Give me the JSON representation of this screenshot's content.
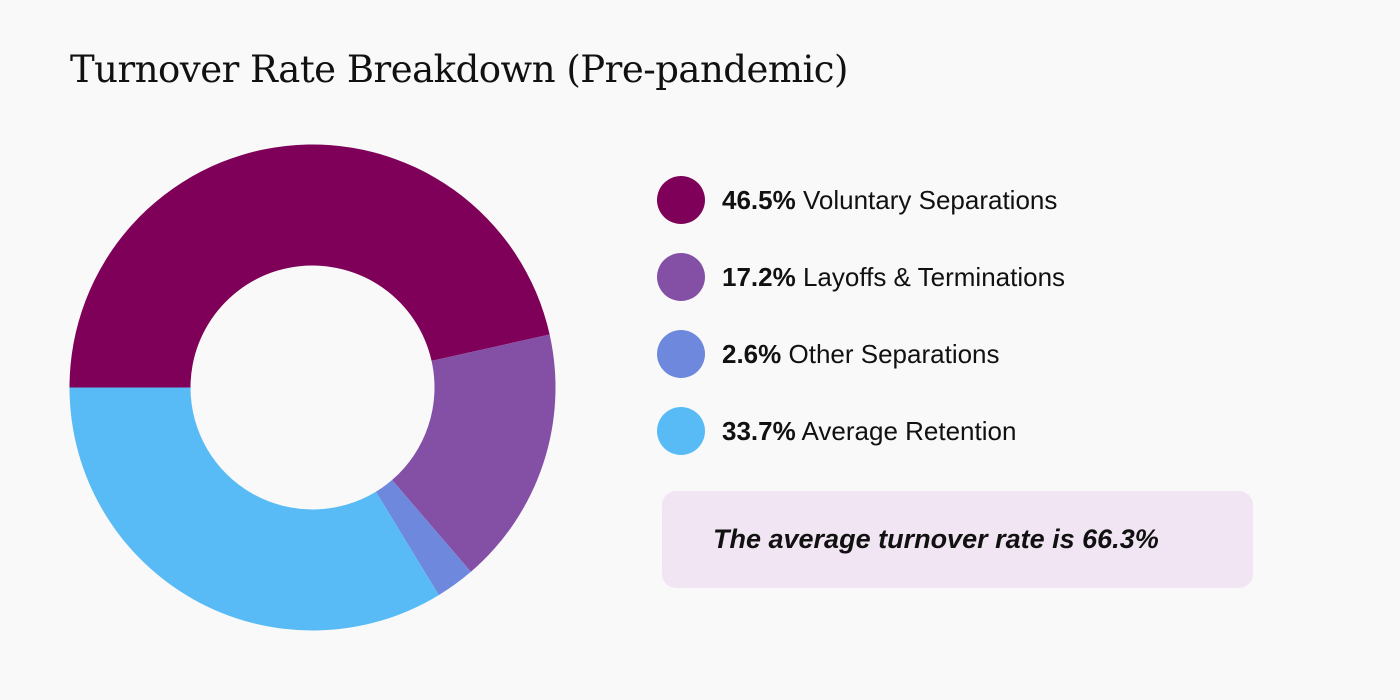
{
  "chart_data": {
    "type": "pie",
    "title": "Turnover Rate Breakdown (Pre-pandemic)",
    "series": [
      {
        "name": "Voluntary Separations",
        "value": 46.5,
        "label": "46.5%",
        "color": "#7f0059"
      },
      {
        "name": "Layoffs & Terminations",
        "value": 17.2,
        "label": "17.2%",
        "color": "#8350a6"
      },
      {
        "name": "Other Separations",
        "value": 2.6,
        "label": "2.6%",
        "color": "#6e88dd"
      },
      {
        "name": "Average Retention",
        "value": 33.7,
        "label": "33.7%",
        "color": "#58bbf5"
      }
    ],
    "legend_position": "right",
    "donut": true
  },
  "callout": {
    "text": "The average turnover rate is 66.3%"
  },
  "colors": {
    "background": "#f9f9f9",
    "callout_background": "#f1e5f4"
  }
}
